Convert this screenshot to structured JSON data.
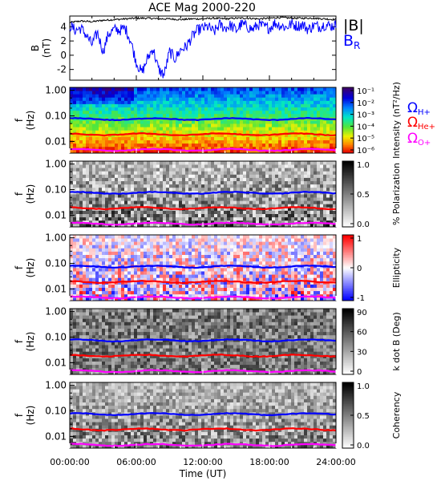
{
  "title": "ACE Mag 2000-220",
  "x_axis": {
    "ticks": [
      "00:00:00",
      "06:00:00",
      "12:00:00",
      "18:00:00",
      "24:00:00"
    ],
    "label": "Time (UT)"
  },
  "legend_top": {
    "line1": "|B|",
    "line2_main": "B",
    "line2_sub": "R"
  },
  "legend_gyro": [
    {
      "main": "Ω",
      "sub": "H+",
      "color": "#0000ff"
    },
    {
      "main": "Ω",
      "sub": "He+",
      "color": "#ff0000"
    },
    {
      "main": "Ω",
      "sub": "O+",
      "color": "#ff00ff"
    }
  ],
  "colors": {
    "B_total": "#000000",
    "B_R": "#0000ff",
    "H": "#0000ff",
    "He": "#ff0000",
    "O": "#ff00ff"
  },
  "chart_data": [
    {
      "type": "line",
      "ylabel": "B (nT)",
      "yticks": [
        "4",
        "2",
        "0",
        "-2"
      ],
      "ylim": [
        -3.5,
        5.5
      ],
      "xlim": [
        0,
        24
      ],
      "series": [
        {
          "name": "|B|",
          "x": [
            0,
            1,
            2,
            3,
            4,
            5,
            6,
            7,
            8,
            9,
            10,
            11,
            12,
            13,
            14,
            15,
            16,
            17,
            18,
            19,
            20,
            21,
            22,
            23,
            24
          ],
          "values": [
            4.6,
            4.8,
            4.7,
            4.9,
            5.0,
            5.1,
            5.2,
            5.2,
            5.1,
            5.1,
            5.0,
            5.1,
            5.1,
            5.2,
            5.1,
            5.2,
            5.2,
            5.1,
            5.2,
            5.3,
            5.2,
            5.2,
            5.2,
            5.1,
            5.0
          ]
        },
        {
          "name": "B_R",
          "x": [
            0,
            0.5,
            1,
            1.5,
            2,
            2.5,
            3,
            3.5,
            4,
            4.5,
            5,
            5.5,
            6,
            6.5,
            7,
            7.5,
            8,
            8.5,
            9,
            9.5,
            10,
            10.5,
            11,
            11.5,
            12,
            12.5,
            13,
            13.5,
            14,
            14.5,
            15,
            15.5,
            16,
            16.5,
            17,
            17.5,
            18,
            18.5,
            19,
            19.5,
            20,
            20.5,
            21,
            21.5,
            22,
            22.5,
            23,
            23.5,
            24
          ],
          "values": [
            4.2,
            3.5,
            3.8,
            2.8,
            1.5,
            3.2,
            0.5,
            3.0,
            3.6,
            3.5,
            3.8,
            2.0,
            -1.0,
            -2.5,
            -0.5,
            1.0,
            -2.0,
            -2.8,
            0.5,
            -0.5,
            0.8,
            1.2,
            2.5,
            3.5,
            3.8,
            4.0,
            3.2,
            4.3,
            3.8,
            4.2,
            3.5,
            4.4,
            4.0,
            3.6,
            4.3,
            4.0,
            3.8,
            4.5,
            4.2,
            3.9,
            4.4,
            4.1,
            4.3,
            3.6,
            4.2,
            4.0,
            4.3,
            4.1,
            4.2
          ]
        }
      ]
    },
    {
      "type": "heatmap",
      "ylabel": "f (Hz)",
      "yticks": [
        "1.00",
        "0.10",
        "0.01"
      ],
      "colorbar_label": "Intensity (nT²/Hz)",
      "colorbar_ticks": [
        "10⁻¹",
        "10⁻²",
        "10⁻³",
        "10⁻⁴",
        "10⁻⁵",
        "10⁻⁶"
      ],
      "colorbar_range": [
        1e-06,
        0.3
      ],
      "gyro": {
        "H": 0.075,
        "He": 0.019,
        "O": 0.0047
      }
    },
    {
      "type": "heatmap",
      "ylabel": "f (Hz)",
      "yticks": [
        "1.00",
        "0.10",
        "0.01"
      ],
      "colorbar_label": "% Polarization",
      "colorbar_ticks": [
        "1.0",
        "0.5",
        "0.0"
      ],
      "colorbar_range": [
        0,
        1
      ],
      "gyro": {
        "H": 0.075,
        "He": 0.019,
        "O": 0.0047
      }
    },
    {
      "type": "heatmap",
      "ylabel": "f (Hz)",
      "yticks": [
        "1.00",
        "0.10",
        "0.01"
      ],
      "colorbar_label": "Ellipticity",
      "colorbar_ticks": [
        "1",
        "0",
        "-1"
      ],
      "colorbar_range": [
        -1,
        1
      ],
      "gyro": {
        "H": 0.075,
        "He": 0.019,
        "O": 0.0047
      }
    },
    {
      "type": "heatmap",
      "ylabel": "f (Hz)",
      "yticks": [
        "1.00",
        "0.10",
        "0.01"
      ],
      "colorbar_label": "k dot B (Deg)",
      "colorbar_ticks": [
        "90",
        "60",
        "30",
        "0"
      ],
      "colorbar_range": [
        0,
        90
      ],
      "gyro": {
        "H": 0.075,
        "He": 0.019,
        "O": 0.0047
      }
    },
    {
      "type": "heatmap",
      "ylabel": "f (Hz)",
      "yticks": [
        "1.00",
        "0.10",
        "0.01"
      ],
      "colorbar_label": "Coherency",
      "colorbar_ticks": [
        "1.0",
        "0.5",
        "0.0"
      ],
      "colorbar_range": [
        0,
        1
      ],
      "gyro": {
        "H": 0.075,
        "He": 0.019,
        "O": 0.0047
      }
    }
  ]
}
